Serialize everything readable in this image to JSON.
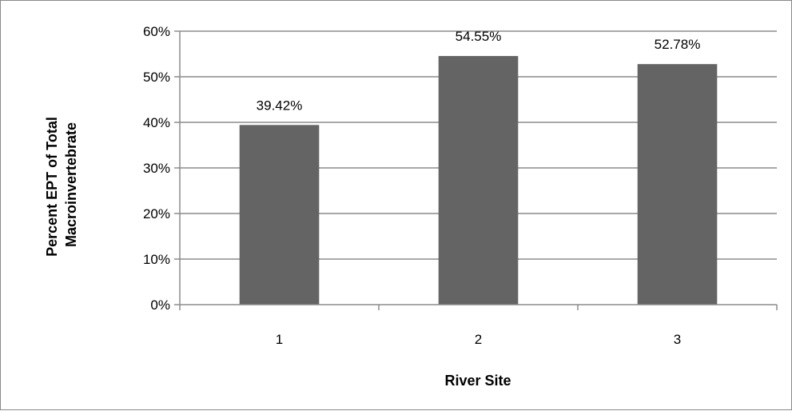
{
  "chart_data": {
    "type": "bar",
    "title": "",
    "xlabel": "River Site",
    "ylabel_lines": [
      "Percent EPT of Total",
      "Macroinvertebrate"
    ],
    "categories": [
      "1",
      "2",
      "3"
    ],
    "values": [
      39.42,
      54.55,
      52.78
    ],
    "data_labels": [
      "39.42%",
      "54.55%",
      "52.78%"
    ],
    "ylim": [
      0,
      60
    ],
    "yticks": [
      0,
      10,
      20,
      30,
      40,
      50,
      60
    ],
    "ytick_labels": [
      "0%",
      "10%",
      "20%",
      "30%",
      "40%",
      "50%",
      "60%"
    ],
    "grid": true,
    "legend": "none",
    "bar_color": "#646464",
    "grid_color": "#8c8c8c"
  }
}
